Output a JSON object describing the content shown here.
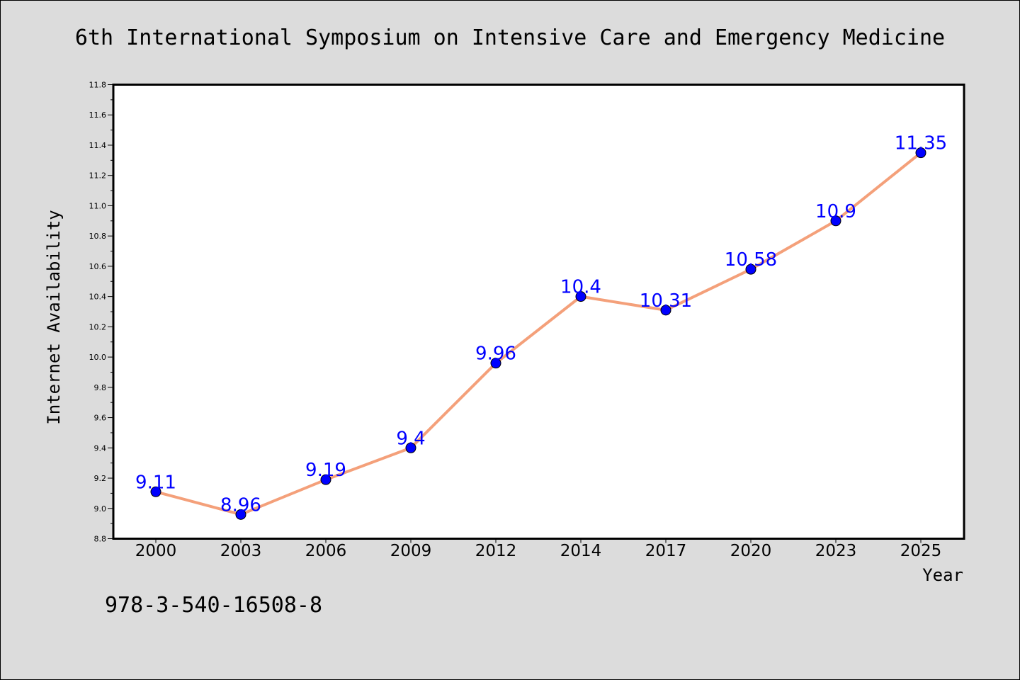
{
  "chart_data": {
    "type": "line",
    "title": "6th International Symposium on Intensive Care and Emergency Medicine",
    "xlabel": "Year",
    "ylabel": "Internet Availability",
    "categories": [
      "2000",
      "2003",
      "2006",
      "2009",
      "2012",
      "2014",
      "2017",
      "2020",
      "2023",
      "2025"
    ],
    "series": [
      {
        "values": [
          9.11,
          8.96,
          9.19,
          9.4,
          9.96,
          10.4,
          10.31,
          10.58,
          10.9,
          11.35
        ],
        "data_labels": [
          "9.11",
          "8.96",
          "9.19",
          "9.4",
          "9.96",
          "10.4",
          "10.31",
          "10.58",
          "10.9",
          "11.35"
        ],
        "line_color": "#f4a07a",
        "marker_color": "#0000ff",
        "label_color": "#0000ff"
      }
    ],
    "ylim": [
      8.8,
      11.8
    ],
    "yticks": [
      "8.8",
      "9.0",
      "9.2",
      "9.4",
      "9.6",
      "9.8",
      "10.0",
      "10.2",
      "10.4",
      "10.6",
      "10.8",
      "11.0",
      "11.2",
      "11.4",
      "11.6",
      "11.8"
    ],
    "grid": false,
    "legend": "none"
  },
  "footnote": "978-3-540-16508-8",
  "colors": {
    "background": "#dcdcdc",
    "plot_background": "#ffffff",
    "axis": "#000000"
  }
}
